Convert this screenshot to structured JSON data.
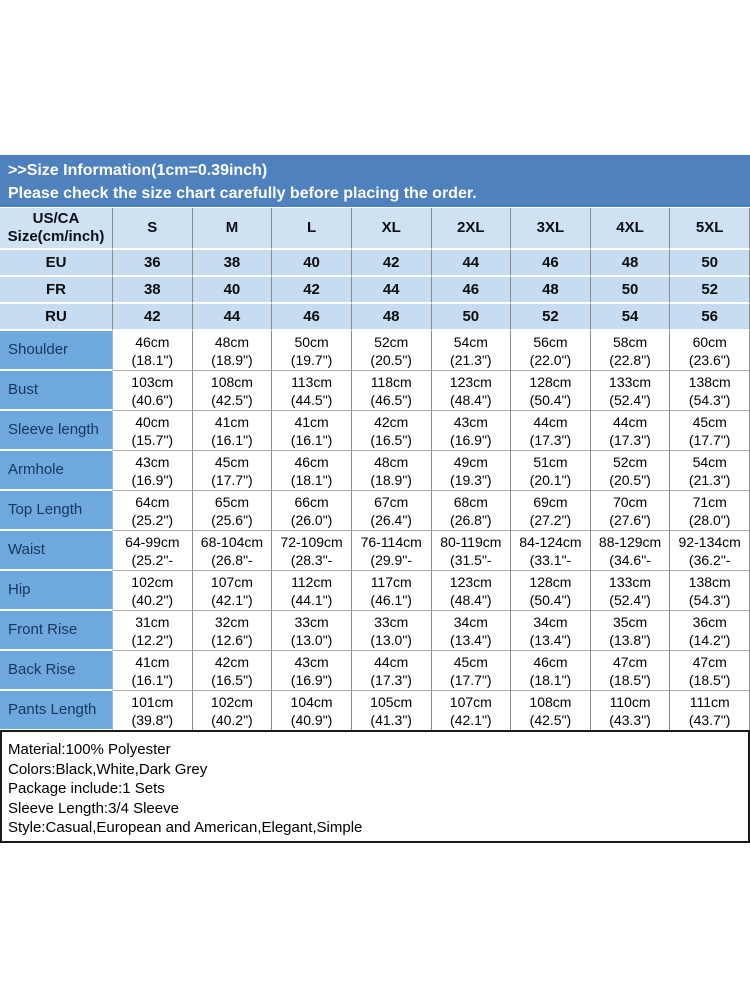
{
  "banner": {
    "title": ">>Size Information(1cm=0.39inch)",
    "subtitle": "Please check the size chart carefully before placing the order."
  },
  "colors": {
    "banner_bg": "#4e81bd",
    "header_bg": "#cfe2f3",
    "region_bg": "#c6dcf0",
    "label_bg": "#6fa8dc",
    "label_text": "#17375e"
  },
  "table": {
    "corner_header_line1": "US/CA",
    "corner_header_line2": "Size(cm/inch)",
    "size_columns": [
      "S",
      "M",
      "L",
      "XL",
      "2XL",
      "3XL",
      "4XL",
      "5XL"
    ],
    "region_rows": [
      {
        "label": "EU",
        "values": [
          "36",
          "38",
          "40",
          "42",
          "44",
          "46",
          "48",
          "50"
        ]
      },
      {
        "label": "FR",
        "values": [
          "38",
          "40",
          "42",
          "44",
          "46",
          "48",
          "50",
          "52"
        ]
      },
      {
        "label": "RU",
        "values": [
          "42",
          "44",
          "46",
          "48",
          "50",
          "52",
          "54",
          "56"
        ]
      }
    ],
    "measurement_rows": [
      {
        "label": "Shoulder",
        "cells": [
          [
            "46cm",
            "(18.1\")"
          ],
          [
            "48cm",
            "(18.9\")"
          ],
          [
            "50cm",
            "(19.7\")"
          ],
          [
            "52cm",
            "(20.5\")"
          ],
          [
            "54cm",
            "(21.3\")"
          ],
          [
            "56cm",
            "(22.0\")"
          ],
          [
            "58cm",
            "(22.8\")"
          ],
          [
            "60cm",
            "(23.6\")"
          ]
        ]
      },
      {
        "label": "Bust",
        "cells": [
          [
            "103cm",
            "(40.6\")"
          ],
          [
            "108cm",
            "(42.5\")"
          ],
          [
            "113cm",
            "(44.5\")"
          ],
          [
            "118cm",
            "(46.5\")"
          ],
          [
            "123cm",
            "(48.4\")"
          ],
          [
            "128cm",
            "(50.4\")"
          ],
          [
            "133cm",
            "(52.4\")"
          ],
          [
            "138cm",
            "(54.3\")"
          ]
        ]
      },
      {
        "label": "Sleeve length",
        "cells": [
          [
            "40cm",
            "(15.7\")"
          ],
          [
            "41cm",
            "(16.1\")"
          ],
          [
            "41cm",
            "(16.1\")"
          ],
          [
            "42cm",
            "(16.5\")"
          ],
          [
            "43cm",
            "(16.9\")"
          ],
          [
            "44cm",
            "(17.3\")"
          ],
          [
            "44cm",
            "(17.3\")"
          ],
          [
            "45cm",
            "(17.7\")"
          ]
        ]
      },
      {
        "label": "Armhole",
        "cells": [
          [
            "43cm",
            "(16.9\")"
          ],
          [
            "45cm",
            "(17.7\")"
          ],
          [
            "46cm",
            "(18.1\")"
          ],
          [
            "48cm",
            "(18.9\")"
          ],
          [
            "49cm",
            "(19.3\")"
          ],
          [
            "51cm",
            "(20.1\")"
          ],
          [
            "52cm",
            "(20.5\")"
          ],
          [
            "54cm",
            "(21.3\")"
          ]
        ]
      },
      {
        "label": "Top Length",
        "cells": [
          [
            "64cm",
            "(25.2\")"
          ],
          [
            "65cm",
            "(25.6\")"
          ],
          [
            "66cm",
            "(26.0\")"
          ],
          [
            "67cm",
            "(26.4\")"
          ],
          [
            "68cm",
            "(26.8\")"
          ],
          [
            "69cm",
            "(27.2\")"
          ],
          [
            "70cm",
            "(27.6\")"
          ],
          [
            "71cm",
            "(28.0\")"
          ]
        ]
      },
      {
        "label": "Waist",
        "cells": [
          [
            "64-99cm",
            "(25.2\"-"
          ],
          [
            "68-104cm",
            "(26.8\"-"
          ],
          [
            "72-109cm",
            "(28.3\"-"
          ],
          [
            "76-114cm",
            "(29.9\"-"
          ],
          [
            "80-119cm",
            "(31.5\"-"
          ],
          [
            "84-124cm",
            "(33.1\"-"
          ],
          [
            "88-129cm",
            "(34.6\"-"
          ],
          [
            "92-134cm",
            "(36.2\"-"
          ]
        ]
      },
      {
        "label": "Hip",
        "cells": [
          [
            "102cm",
            "(40.2\")"
          ],
          [
            "107cm",
            "(42.1\")"
          ],
          [
            "112cm",
            "(44.1\")"
          ],
          [
            "117cm",
            "(46.1\")"
          ],
          [
            "123cm",
            "(48.4\")"
          ],
          [
            "128cm",
            "(50.4\")"
          ],
          [
            "133cm",
            "(52.4\")"
          ],
          [
            "138cm",
            "(54.3\")"
          ]
        ]
      },
      {
        "label": "Front Rise",
        "cells": [
          [
            "31cm",
            "(12.2\")"
          ],
          [
            "32cm",
            "(12.6\")"
          ],
          [
            "33cm",
            "(13.0\")"
          ],
          [
            "33cm",
            "(13.0\")"
          ],
          [
            "34cm",
            "(13.4\")"
          ],
          [
            "34cm",
            "(13.4\")"
          ],
          [
            "35cm",
            "(13.8\")"
          ],
          [
            "36cm",
            "(14.2\")"
          ]
        ]
      },
      {
        "label": "Back Rise",
        "cells": [
          [
            "41cm",
            "(16.1\")"
          ],
          [
            "42cm",
            "(16.5\")"
          ],
          [
            "43cm",
            "(16.9\")"
          ],
          [
            "44cm",
            "(17.3\")"
          ],
          [
            "45cm",
            "(17.7\")"
          ],
          [
            "46cm",
            "(18.1\")"
          ],
          [
            "47cm",
            "(18.5\")"
          ],
          [
            "47cm",
            "(18.5\")"
          ]
        ]
      },
      {
        "label": "Pants Length",
        "cells": [
          [
            "101cm",
            "(39.8\")"
          ],
          [
            "102cm",
            "(40.2\")"
          ],
          [
            "104cm",
            "(40.9\")"
          ],
          [
            "105cm",
            "(41.3\")"
          ],
          [
            "107cm",
            "(42.1\")"
          ],
          [
            "108cm",
            "(42.5\")"
          ],
          [
            "110cm",
            "(43.3\")"
          ],
          [
            "111cm",
            "(43.7\")"
          ]
        ]
      }
    ]
  },
  "details": {
    "lines": [
      "Material:100% Polyester",
      "Colors:Black,White,Dark Grey",
      "Package include:1 Sets",
      "Sleeve Length:3/4 Sleeve",
      "Style:Casual,European and American,Elegant,Simple"
    ]
  }
}
